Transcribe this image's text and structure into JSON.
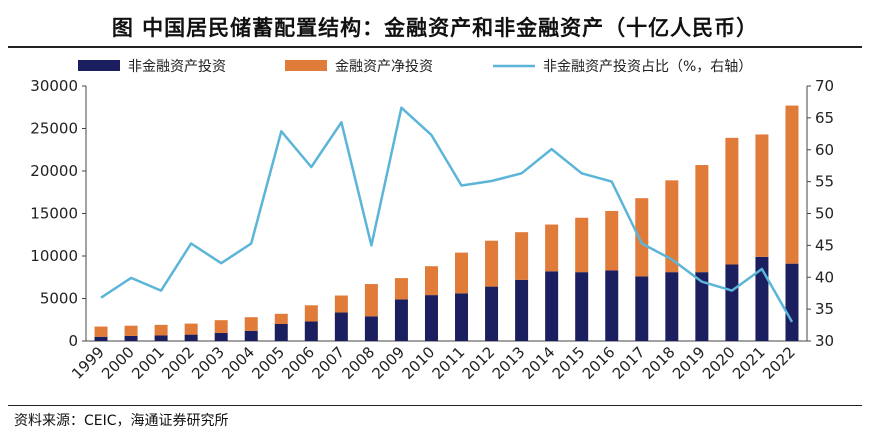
{
  "title": "图  中国居民储蓄配置结构：金融资产和非金融资产（十亿人民币）",
  "source": "资料来源：CEIC，海通证券研究所",
  "chart_data": {
    "type": "bar",
    "stacked": true,
    "categories": [
      "1999",
      "2000",
      "2001",
      "2002",
      "2003",
      "2004",
      "2005",
      "2006",
      "2007",
      "2008",
      "2009",
      "2010",
      "2011",
      "2012",
      "2013",
      "2014",
      "2015",
      "2016",
      "2017",
      "2018",
      "2019",
      "2020",
      "2021",
      "2022"
    ],
    "series": [
      {
        "name": "非金融资产投资",
        "kind": "bar",
        "axis": "left",
        "color": "#1c1f5f",
        "values": [
          500,
          600,
          650,
          750,
          950,
          1200,
          2000,
          2300,
          3350,
          2900,
          4900,
          5400,
          5600,
          6400,
          7200,
          8200,
          8100,
          8300,
          7600,
          8100,
          8100,
          9000,
          9900,
          9100
        ]
      },
      {
        "name": "金融资产净投资",
        "kind": "bar",
        "axis": "left",
        "color": "#e07b39",
        "values": [
          1200,
          1200,
          1250,
          1300,
          1500,
          1600,
          1200,
          1900,
          2000,
          3800,
          2500,
          3400,
          4800,
          5400,
          5600,
          5500,
          6400,
          7000,
          9200,
          10800,
          12600,
          14900,
          14400,
          18600
        ]
      },
      {
        "name": "非金融资产投资占比（%，右轴）",
        "kind": "line",
        "axis": "right",
        "color": "#5bb5d8",
        "values": [
          36.8,
          39.9,
          37.9,
          45.3,
          42.2,
          45.3,
          62.9,
          57.3,
          64.3,
          45.0,
          66.6,
          62.3,
          54.4,
          55.1,
          56.3,
          60.1,
          56.3,
          55.0,
          45.3,
          42.8,
          39.3,
          37.9,
          41.3,
          33.0
        ]
      }
    ],
    "ylim_left": [
      0,
      30000
    ],
    "ylim_right": [
      30,
      70
    ],
    "yticks_left": [
      "0",
      "5000",
      "10000",
      "15000",
      "20000",
      "25000",
      "30000"
    ],
    "yticks_right": [
      "30",
      "35",
      "40",
      "45",
      "50",
      "55",
      "60",
      "65",
      "70"
    ],
    "legend_position": "top",
    "grid": false
  }
}
